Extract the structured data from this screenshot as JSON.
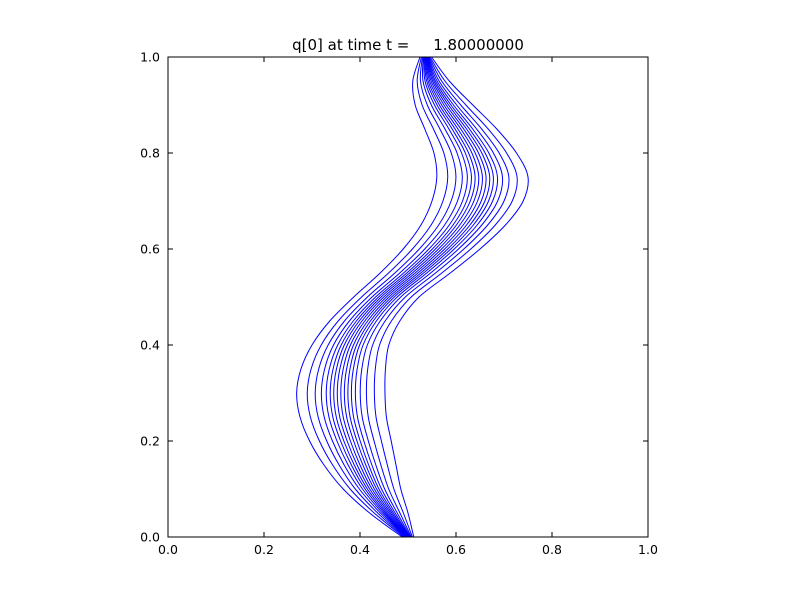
{
  "figure": {
    "background": "#ffffff",
    "frame_color": "#000000"
  },
  "chart_data": {
    "type": "contour",
    "title": "q[0] at time t =     1.80000000",
    "xlabel": "",
    "ylabel": "",
    "xlim": [
      0.0,
      1.0
    ],
    "ylim": [
      0.0,
      1.0
    ],
    "x_tick_labels": [
      "0.0",
      "0.2",
      "0.4",
      "0.6",
      "0.8",
      "1.0"
    ],
    "x_tick_values": [
      0.0,
      0.2,
      0.4,
      0.6,
      0.8,
      1.0
    ],
    "y_tick_labels": [
      "0.0",
      "0.2",
      "0.4",
      "0.6",
      "0.8",
      "1.0"
    ],
    "y_tick_values": [
      0.0,
      0.2,
      0.4,
      0.6,
      0.8,
      1.0
    ],
    "grid": false,
    "legend": null,
    "tick_direction": "in",
    "contour": {
      "color": "#0000ff",
      "line_width": 1,
      "n_levels": 17,
      "shape": "s-curve band of nested contour lines converging at (0.5,0.0) and (0.54,1.0), bulging left to x~0.27 near y=0.3 and right to x~0.75 near y=0.72",
      "level_offsets": [
        -1.0,
        -0.76,
        -0.58,
        -0.44,
        -0.33,
        -0.24,
        -0.16,
        -0.08,
        0.0,
        0.08,
        0.16,
        0.24,
        0.33,
        0.44,
        0.58,
        0.76,
        1.0
      ],
      "band_y": [
        0.0,
        0.05,
        0.1,
        0.15,
        0.2,
        0.25,
        0.3,
        0.35,
        0.4,
        0.45,
        0.5,
        0.55,
        0.6,
        0.65,
        0.7,
        0.75,
        0.8,
        0.85,
        0.9,
        0.95,
        1.0
      ],
      "band_center_x": [
        0.5,
        0.46,
        0.425,
        0.4,
        0.38,
        0.365,
        0.36,
        0.365,
        0.38,
        0.41,
        0.455,
        0.515,
        0.57,
        0.615,
        0.645,
        0.655,
        0.64,
        0.61,
        0.575,
        0.548,
        0.537
      ],
      "band_half_width": [
        0.012,
        0.04,
        0.06,
        0.075,
        0.085,
        0.09,
        0.092,
        0.088,
        0.08,
        0.073,
        0.068,
        0.073,
        0.08,
        0.088,
        0.095,
        0.095,
        0.086,
        0.075,
        0.06,
        0.038,
        0.012
      ]
    }
  }
}
